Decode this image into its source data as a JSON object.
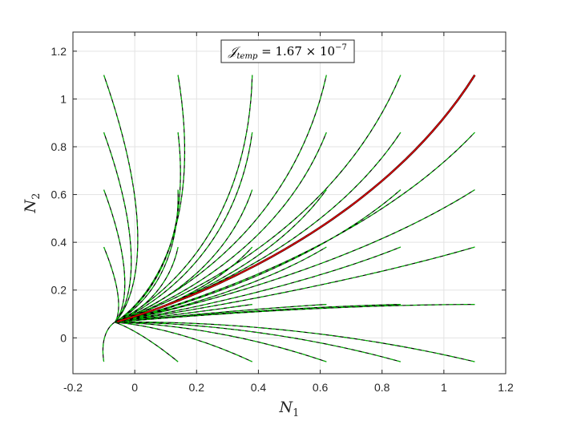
{
  "chart_data": {
    "type": "line",
    "title": "",
    "xlabel": "N",
    "xlabel_sub": "1",
    "ylabel": "N",
    "ylabel_sub": "2",
    "xlim": [
      -0.2,
      1.2
    ],
    "ylim": [
      -0.15,
      1.28
    ],
    "xticks": [
      -0.2,
      0,
      0.2,
      0.4,
      0.6,
      0.8,
      1,
      1.2
    ],
    "xtick_labels": [
      "-0.2",
      "0",
      "0.2",
      "0.4",
      "0.6",
      "0.8",
      "1",
      "1.2"
    ],
    "yticks": [
      0,
      0.2,
      0.4,
      0.6,
      0.8,
      1,
      1.2
    ],
    "ytick_labels": [
      "0",
      "0.2",
      "0.4",
      "0.6",
      "0.8",
      "1",
      "1.2"
    ],
    "grid": true,
    "annotation": {
      "prefix": "𝒥",
      "sub": "temp",
      "rest": " = 1.67 × 10",
      "sup": "−7"
    },
    "colors": {
      "trajectory": "#000000",
      "dashed_overlay": "#00cc00",
      "highlight": "#d40000",
      "grid": "#e3e3e3",
      "axis": "#262626"
    },
    "endpoint": [
      -0.065,
      0.065
    ],
    "series": [
      {
        "start": [
          -0.1,
          1.1
        ]
      },
      {
        "start": [
          0.14,
          1.1
        ]
      },
      {
        "start": [
          0.38,
          1.1
        ]
      },
      {
        "start": [
          0.62,
          1.1
        ]
      },
      {
        "start": [
          0.86,
          1.1
        ]
      },
      {
        "start": [
          -0.1,
          0.86
        ]
      },
      {
        "start": [
          0.14,
          0.86
        ]
      },
      {
        "start": [
          0.38,
          0.86
        ]
      },
      {
        "start": [
          0.62,
          0.86
        ]
      },
      {
        "start": [
          0.86,
          0.86
        ]
      },
      {
        "start": [
          1.1,
          0.86
        ]
      },
      {
        "start": [
          -0.1,
          0.62
        ]
      },
      {
        "start": [
          0.14,
          0.62
        ]
      },
      {
        "start": [
          0.38,
          0.62
        ]
      },
      {
        "start": [
          0.62,
          0.62
        ]
      },
      {
        "start": [
          0.86,
          0.62
        ]
      },
      {
        "start": [
          1.1,
          0.62
        ]
      },
      {
        "start": [
          -0.1,
          0.38
        ]
      },
      {
        "start": [
          0.14,
          0.38
        ]
      },
      {
        "start": [
          0.38,
          0.38
        ]
      },
      {
        "start": [
          0.62,
          0.38
        ]
      },
      {
        "start": [
          0.86,
          0.38
        ]
      },
      {
        "start": [
          1.1,
          0.38
        ]
      },
      {
        "start": [
          0.14,
          0.14
        ]
      },
      {
        "start": [
          0.38,
          0.14
        ]
      },
      {
        "start": [
          0.62,
          0.14
        ]
      },
      {
        "start": [
          0.86,
          0.14
        ]
      },
      {
        "start": [
          1.1,
          0.14
        ]
      },
      {
        "start": [
          0.14,
          -0.1
        ]
      },
      {
        "start": [
          0.38,
          -0.1
        ]
      },
      {
        "start": [
          0.62,
          -0.1
        ]
      },
      {
        "start": [
          0.86,
          -0.1
        ]
      },
      {
        "start": [
          1.1,
          -0.1
        ]
      },
      {
        "start": [
          -0.1,
          -0.1
        ]
      },
      {
        "start": [
          1.1,
          1.1
        ],
        "highlight": true
      }
    ]
  }
}
